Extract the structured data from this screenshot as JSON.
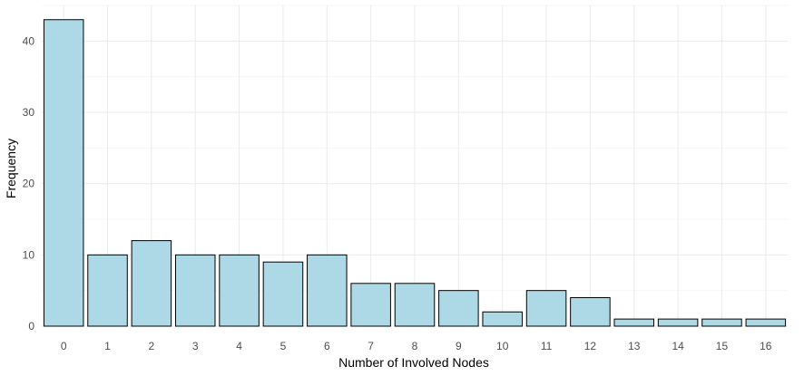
{
  "chart_data": {
    "type": "bar",
    "title": "",
    "xlabel": "Number of Involved Nodes",
    "ylabel": "Frequency",
    "categories": [
      "0",
      "1",
      "2",
      "3",
      "4",
      "5",
      "6",
      "7",
      "8",
      "9",
      "10",
      "11",
      "12",
      "13",
      "14",
      "15",
      "16"
    ],
    "values": [
      43,
      10,
      12,
      10,
      10,
      9,
      10,
      6,
      6,
      5,
      2,
      5,
      4,
      1,
      1,
      1,
      1
    ],
    "ylim": [
      0,
      45
    ],
    "yticks": [
      0,
      10,
      20,
      30,
      40
    ],
    "grid": true,
    "legend": "none",
    "colors": {
      "bar_fill": "#add8e6",
      "bar_stroke": "#000000"
    }
  }
}
